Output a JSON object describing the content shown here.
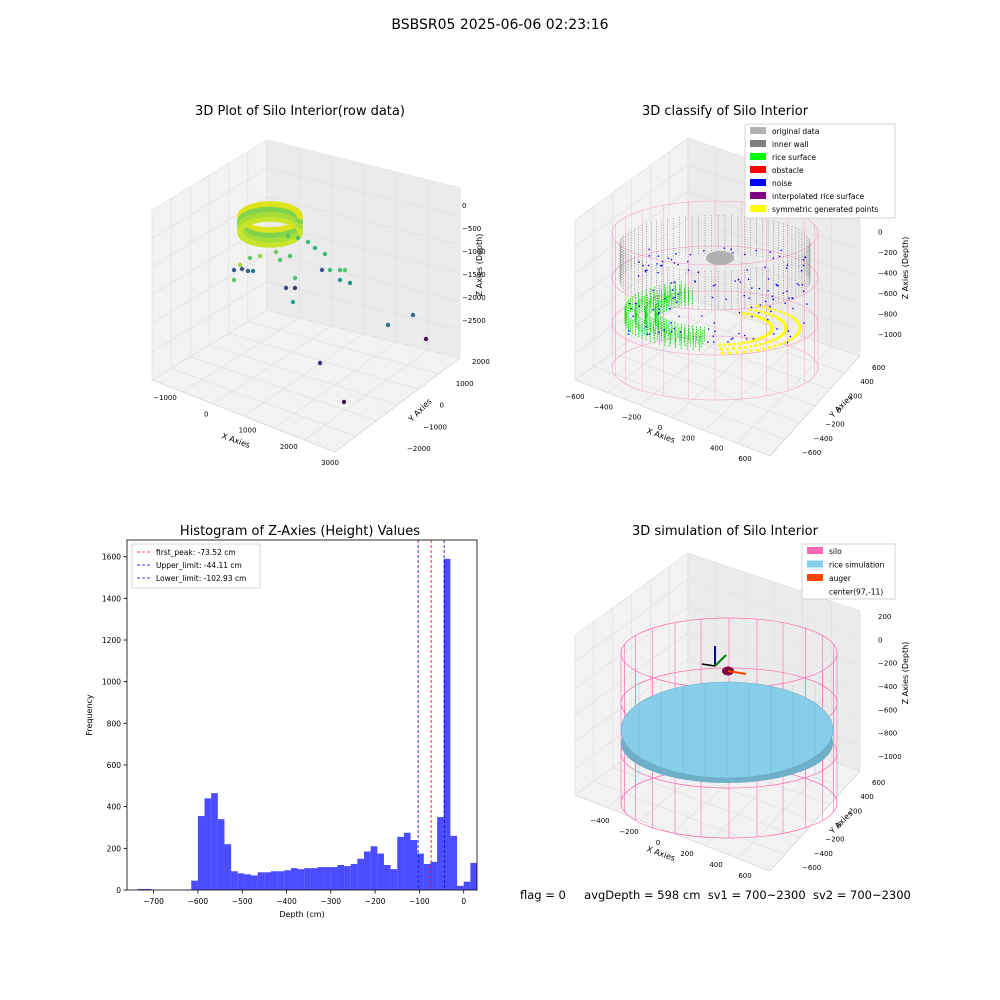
{
  "figure": {
    "title": "BSBSR05 2025-06-06 02:23:16",
    "status": {
      "flag": "flag = 0",
      "avg_depth": "avgDepth = 598 cm",
      "sv1": "sv1 = 700~2300",
      "sv2": "sv2 = 700~2300"
    }
  },
  "panels": {
    "raw": {
      "title": "3D Plot of Silo Interior(row data)",
      "xlabel": "X Axies",
      "ylabel": "Y Axies",
      "zlabel": "Z Axies (Depth)",
      "xticks": [
        "−1000",
        "0",
        "1000",
        "2000",
        "3000"
      ],
      "yticks": [
        "−2000",
        "−1000",
        "0",
        "1000",
        "2000"
      ],
      "zticks": [
        "0",
        "−500",
        "−1000",
        "−1500",
        "−2000",
        "−2500"
      ]
    },
    "classify": {
      "title": "3D classify of Silo Interior",
      "xlabel": "X Axies",
      "ylabel": "Y Axies",
      "zlabel": "Z Axies (Depth)",
      "xticks": [
        "−600",
        "−400",
        "−200",
        "0",
        "200",
        "400",
        "600"
      ],
      "yticks": [
        "−600",
        "−400",
        "−200",
        "0",
        "200",
        "400",
        "600"
      ],
      "zticks": [
        "200",
        "0",
        "−200",
        "−400",
        "−600",
        "−800",
        "−1000"
      ],
      "legend": [
        {
          "label": "original data",
          "color": "#b0b0b0"
        },
        {
          "label": "inner wall",
          "color": "#808080"
        },
        {
          "label": "rice surface",
          "color": "#00ff00"
        },
        {
          "label": "obstacle",
          "color": "#ff0000"
        },
        {
          "label": "noise",
          "color": "#0000ff"
        },
        {
          "label": "interpolated rice surface",
          "color": "#800080"
        },
        {
          "label": "symmetric generated points",
          "color": "#ffff00"
        }
      ]
    },
    "simulation": {
      "title": "3D simulation of Silo Interior",
      "xlabel": "X Axies",
      "ylabel": "Y Axies",
      "zlabel": "Z Axies (Depth)",
      "xticks": [
        "−400",
        "−200",
        "0",
        "200",
        "400",
        "600"
      ],
      "yticks": [
        "−600",
        "−400",
        "−200",
        "0",
        "200",
        "400",
        "600"
      ],
      "zticks": [
        "200",
        "0",
        "−200",
        "−400",
        "−600",
        "−800",
        "−1000"
      ],
      "legend": [
        {
          "label": "silo",
          "color": "#ff69b4"
        },
        {
          "label": "rice simulation",
          "color": "#87ceeb"
        },
        {
          "label": "auger",
          "color": "#ff4500"
        },
        {
          "label": "center(97,-11)",
          "color": ""
        }
      ]
    }
  },
  "chart_data": {
    "type": "bar",
    "title": "Histogram of Z-Axies (Height) Values",
    "xlabel": "Depth (cm)",
    "ylabel": "Frequency",
    "xlim": [
      -760,
      30
    ],
    "ylim": [
      0,
      1680
    ],
    "xticks": [
      -700,
      -600,
      -500,
      -400,
      -300,
      -200,
      -100,
      0
    ],
    "yticks": [
      0,
      200,
      400,
      600,
      800,
      1000,
      1200,
      1400,
      1600
    ],
    "bin_width": 15,
    "bin_start": -735,
    "counts": [
      5,
      5,
      0,
      0,
      0,
      0,
      0,
      0,
      45,
      355,
      440,
      465,
      340,
      220,
      90,
      80,
      75,
      70,
      85,
      85,
      90,
      90,
      95,
      105,
      100,
      105,
      105,
      110,
      110,
      110,
      120,
      115,
      125,
      150,
      185,
      210,
      175,
      120,
      100,
      255,
      275,
      240,
      175,
      125,
      135,
      350,
      1590,
      260,
      20,
      40,
      130
    ],
    "bar_color": "#0000ff",
    "lines": [
      {
        "label": "first_peak: -73.52 cm",
        "x": -73.52,
        "color": "#ff0000"
      },
      {
        "label": "Upper_limit: -44.11 cm",
        "x": -44.11,
        "color": "#0000cc"
      },
      {
        "label": "Lower_limit: -102.93 cm",
        "x": -102.93,
        "color": "#0000cc"
      }
    ],
    "legend_position": "top-left"
  }
}
